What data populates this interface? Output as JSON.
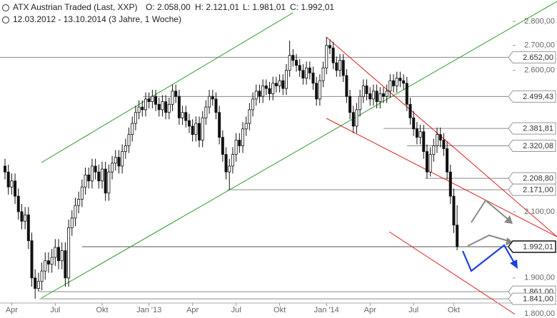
{
  "chart_data": {
    "type": "candlestick",
    "title": "ATX Austrian Traded (Last, XXP)",
    "ohlc_text": [
      "O: 2.058,00",
      "H: 2.121,01",
      "L: 1.981,01",
      "C: 1.992,01"
    ],
    "subtitle": "12.03.2012 - 13.10.2014 (3 Jahre, 1 Woche)",
    "log_scale": true,
    "ylim": [
      1800,
      2800
    ],
    "yticks": [
      {
        "value": 1800,
        "label": "1.800,00"
      },
      {
        "value": 1900,
        "label": "1.900,00"
      },
      {
        "value": 2100,
        "label": "2.100,00"
      },
      {
        "value": 2600,
        "label": "2.600,00"
      },
      {
        "value": 2700,
        "label": "2.700,00"
      },
      {
        "value": 2800,
        "label": "2.800,00"
      }
    ],
    "up_color": "#ffffff",
    "down_color": "#111111",
    "wick_color": "#111111",
    "levels": [
      {
        "value": 2652,
        "label": "2.652,00"
      },
      {
        "value": 2499.43,
        "label": "2.499,43"
      },
      {
        "value": 2381.81,
        "label": "2.381,81"
      },
      {
        "value": 2320.08,
        "label": "2.320,08"
      },
      {
        "value": 2208.8,
        "label": "2.208,80"
      },
      {
        "value": 2171,
        "label": "2.171,00"
      },
      {
        "value": 1992.01,
        "label": "1.992,01"
      },
      {
        "value": 1861,
        "label": "1.861,00"
      },
      {
        "value": 1841,
        "label": "1.841,00"
      }
    ],
    "categories": [
      null,
      null,
      "Apr",
      null,
      null,
      null,
      null,
      null,
      null,
      null,
      null,
      null,
      null,
      null,
      null,
      "Jul",
      null,
      null,
      null,
      null,
      null,
      null,
      null,
      null,
      null,
      null,
      null,
      null,
      null,
      "Okt",
      null,
      null,
      null,
      null,
      null,
      null,
      null,
      null,
      null,
      null,
      null,
      null,
      null,
      "Jan '13",
      null,
      null,
      null,
      null,
      null,
      null,
      null,
      null,
      null,
      null,
      null,
      null,
      "Apr",
      null,
      null,
      null,
      null,
      null,
      null,
      null,
      null,
      null,
      null,
      null,
      null,
      "Jul",
      null,
      null,
      null,
      null,
      null,
      null,
      null,
      null,
      null,
      null,
      null,
      null,
      "Okt",
      null,
      null,
      null,
      null,
      null,
      null,
      null,
      null,
      null,
      null,
      null,
      null,
      null,
      "Jan '14",
      null,
      null,
      null,
      null,
      null,
      null,
      null,
      null,
      null,
      null,
      null,
      null,
      "Apr",
      null,
      null,
      null,
      null,
      null,
      null,
      null,
      null,
      null,
      null,
      null,
      null,
      "Jul",
      null,
      null,
      null,
      null,
      null,
      null,
      null,
      null,
      null,
      null,
      null,
      "Okt",
      null
    ],
    "open": [
      2250,
      2230,
      2180,
      2200,
      2150,
      2100,
      2070,
      2090,
      2010,
      1900,
      1870,
      1890,
      1920,
      1950,
      1940,
      1960,
      1990,
      1950,
      1980,
      1900,
      2050,
      2080,
      2120,
      2140,
      2180,
      2220,
      2200,
      2250,
      2230,
      2200,
      2240,
      2160,
      2230,
      2260,
      2280,
      2250,
      2300,
      2320,
      2360,
      2400,
      2440,
      2460,
      2450,
      2490,
      2480,
      2500,
      2470,
      2450,
      2480,
      2440,
      2470,
      2520,
      2500,
      2420,
      2440,
      2410,
      2390,
      2360,
      2400,
      2340,
      2420,
      2460,
      2500,
      2490,
      2440,
      2350,
      2290,
      2230,
      2250,
      2290,
      2340,
      2320,
      2380,
      2400,
      2450,
      2490,
      2520,
      2500,
      2540,
      2530,
      2510,
      2550,
      2540,
      2560,
      2530,
      2600,
      2660,
      2640,
      2620,
      2600,
      2570,
      2610,
      2590,
      2550,
      2490,
      2560,
      2610,
      2700,
      2690,
      2630,
      2600,
      2640,
      2580,
      2500,
      2440,
      2390,
      2450,
      2500,
      2540,
      2510,
      2490,
      2520,
      2480,
      2510,
      2500,
      2520,
      2560,
      2540,
      2570,
      2560,
      2550,
      2470,
      2420,
      2380,
      2350,
      2370,
      2300,
      2230,
      2290,
      2320,
      2360,
      2340,
      2310,
      2230,
      2150,
      2058
    ],
    "high": [
      2275,
      2255,
      2225,
      2225,
      2175,
      2125,
      2115,
      2115,
      2035,
      1925,
      1915,
      1945,
      1975,
      1975,
      1985,
      2015,
      2015,
      2005,
      2005,
      2075,
      2105,
      2145,
      2165,
      2205,
      2245,
      2245,
      2275,
      2275,
      2255,
      2265,
      2265,
      2255,
      2285,
      2305,
      2305,
      2325,
      2345,
      2385,
      2425,
      2465,
      2485,
      2485,
      2515,
      2515,
      2525,
      2525,
      2495,
      2505,
      2505,
      2495,
      2545,
      2545,
      2525,
      2465,
      2465,
      2435,
      2415,
      2425,
      2425,
      2445,
      2485,
      2525,
      2525,
      2515,
      2465,
      2375,
      2315,
      2275,
      2315,
      2365,
      2365,
      2405,
      2425,
      2475,
      2515,
      2545,
      2545,
      2565,
      2565,
      2555,
      2575,
      2575,
      2585,
      2585,
      2625,
      2720,
      2685,
      2665,
      2645,
      2625,
      2635,
      2635,
      2615,
      2575,
      2585,
      2635,
      2735,
      2725,
      2715,
      2655,
      2665,
      2665,
      2605,
      2525,
      2465,
      2475,
      2525,
      2565,
      2565,
      2535,
      2545,
      2545,
      2535,
      2535,
      2545,
      2585,
      2585,
      2595,
      2595,
      2585,
      2575,
      2495,
      2445,
      2405,
      2395,
      2395,
      2325,
      2315,
      2345,
      2385,
      2385,
      2365,
      2335,
      2255,
      2175,
      2121.01
    ],
    "low": [
      2205,
      2155,
      2155,
      2125,
      2075,
      2045,
      2045,
      1985,
      1875,
      1841,
      1861,
      1865,
      1895,
      1915,
      1915,
      1935,
      1925,
      1925,
      1875,
      1875,
      2025,
      2055,
      2095,
      2115,
      2155,
      2175,
      2175,
      2205,
      2175,
      2175,
      2135,
      2135,
      2205,
      2235,
      2225,
      2225,
      2275,
      2295,
      2335,
      2375,
      2415,
      2425,
      2425,
      2455,
      2455,
      2445,
      2425,
      2425,
      2415,
      2415,
      2445,
      2475,
      2395,
      2395,
      2385,
      2365,
      2335,
      2335,
      2315,
      2315,
      2395,
      2435,
      2465,
      2415,
      2325,
      2265,
      2205,
      2171,
      2225,
      2265,
      2295,
      2295,
      2355,
      2375,
      2425,
      2465,
      2475,
      2475,
      2505,
      2485,
      2485,
      2515,
      2515,
      2505,
      2505,
      2575,
      2615,
      2595,
      2575,
      2545,
      2545,
      2565,
      2525,
      2465,
      2465,
      2535,
      2585,
      2665,
      2605,
      2575,
      2575,
      2555,
      2475,
      2415,
      2365,
      2365,
      2425,
      2475,
      2485,
      2465,
      2465,
      2455,
      2455,
      2475,
      2475,
      2495,
      2515,
      2515,
      2535,
      2525,
      2445,
      2395,
      2355,
      2325,
      2325,
      2275,
      2208.8,
      2215,
      2265,
      2295,
      2315,
      2285,
      2205,
      2125,
      2033,
      1981.01
    ],
    "close": [
      2230,
      2180,
      2200,
      2150,
      2100,
      2070,
      2090,
      2010,
      1900,
      1870,
      1890,
      1920,
      1950,
      1940,
      1960,
      1990,
      1950,
      1980,
      1900,
      2050,
      2080,
      2120,
      2140,
      2180,
      2220,
      2200,
      2250,
      2230,
      2200,
      2240,
      2160,
      2230,
      2260,
      2280,
      2250,
      2300,
      2320,
      2360,
      2400,
      2440,
      2460,
      2450,
      2490,
      2480,
      2500,
      2470,
      2450,
      2480,
      2440,
      2470,
      2520,
      2500,
      2420,
      2440,
      2410,
      2390,
      2360,
      2400,
      2340,
      2420,
      2460,
      2500,
      2490,
      2440,
      2350,
      2290,
      2230,
      2250,
      2290,
      2340,
      2320,
      2380,
      2400,
      2450,
      2490,
      2520,
      2500,
      2540,
      2530,
      2510,
      2550,
      2540,
      2560,
      2530,
      2600,
      2660,
      2640,
      2620,
      2600,
      2570,
      2610,
      2590,
      2550,
      2490,
      2560,
      2610,
      2700,
      2690,
      2630,
      2600,
      2640,
      2580,
      2500,
      2440,
      2390,
      2450,
      2500,
      2540,
      2510,
      2490,
      2520,
      2480,
      2510,
      2500,
      2520,
      2560,
      2540,
      2570,
      2560,
      2550,
      2470,
      2420,
      2380,
      2350,
      2370,
      2300,
      2230,
      2290,
      2320,
      2360,
      2340,
      2310,
      2230,
      2150,
      2058,
      1992.01
    ]
  }
}
